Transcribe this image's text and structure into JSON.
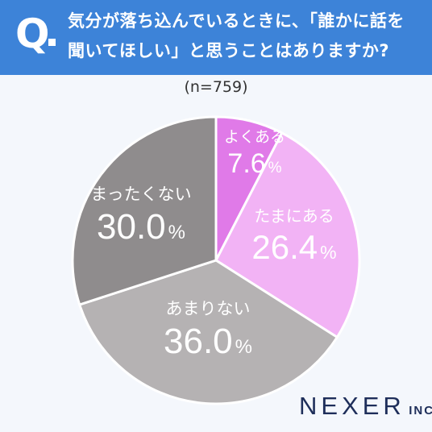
{
  "header": {
    "q_label": "Q",
    "question_line1": "気分が落ち込んでいるときに、「誰かに話を",
    "question_line2": "聞いてほしい」と思うことはありますか?",
    "background": "#3d83d8"
  },
  "sample_size": "(n=759)",
  "logo": {
    "main": "NEXER",
    "suffix": "INC."
  },
  "chart_data": {
    "type": "pie",
    "start": "12 o'clock, clockwise",
    "slices": [
      {
        "label": "よくある",
        "value": 7.6,
        "display": "7.6",
        "unit": "%",
        "color": "#e07ae8",
        "text_color": "#ffffff"
      },
      {
        "label": "たまにある",
        "value": 26.4,
        "display": "26.4",
        "unit": "%",
        "color": "#f2b3f5",
        "text_color": "#ffffff"
      },
      {
        "label": "あまりない",
        "value": 36.0,
        "display": "36.0",
        "unit": "%",
        "color": "#b5b2b3",
        "text_color": "#ffffff"
      },
      {
        "label": "まったくない",
        "value": 30.0,
        "display": "30.0",
        "unit": "%",
        "color": "#8f8c8d",
        "text_color": "#ffffff"
      }
    ]
  }
}
